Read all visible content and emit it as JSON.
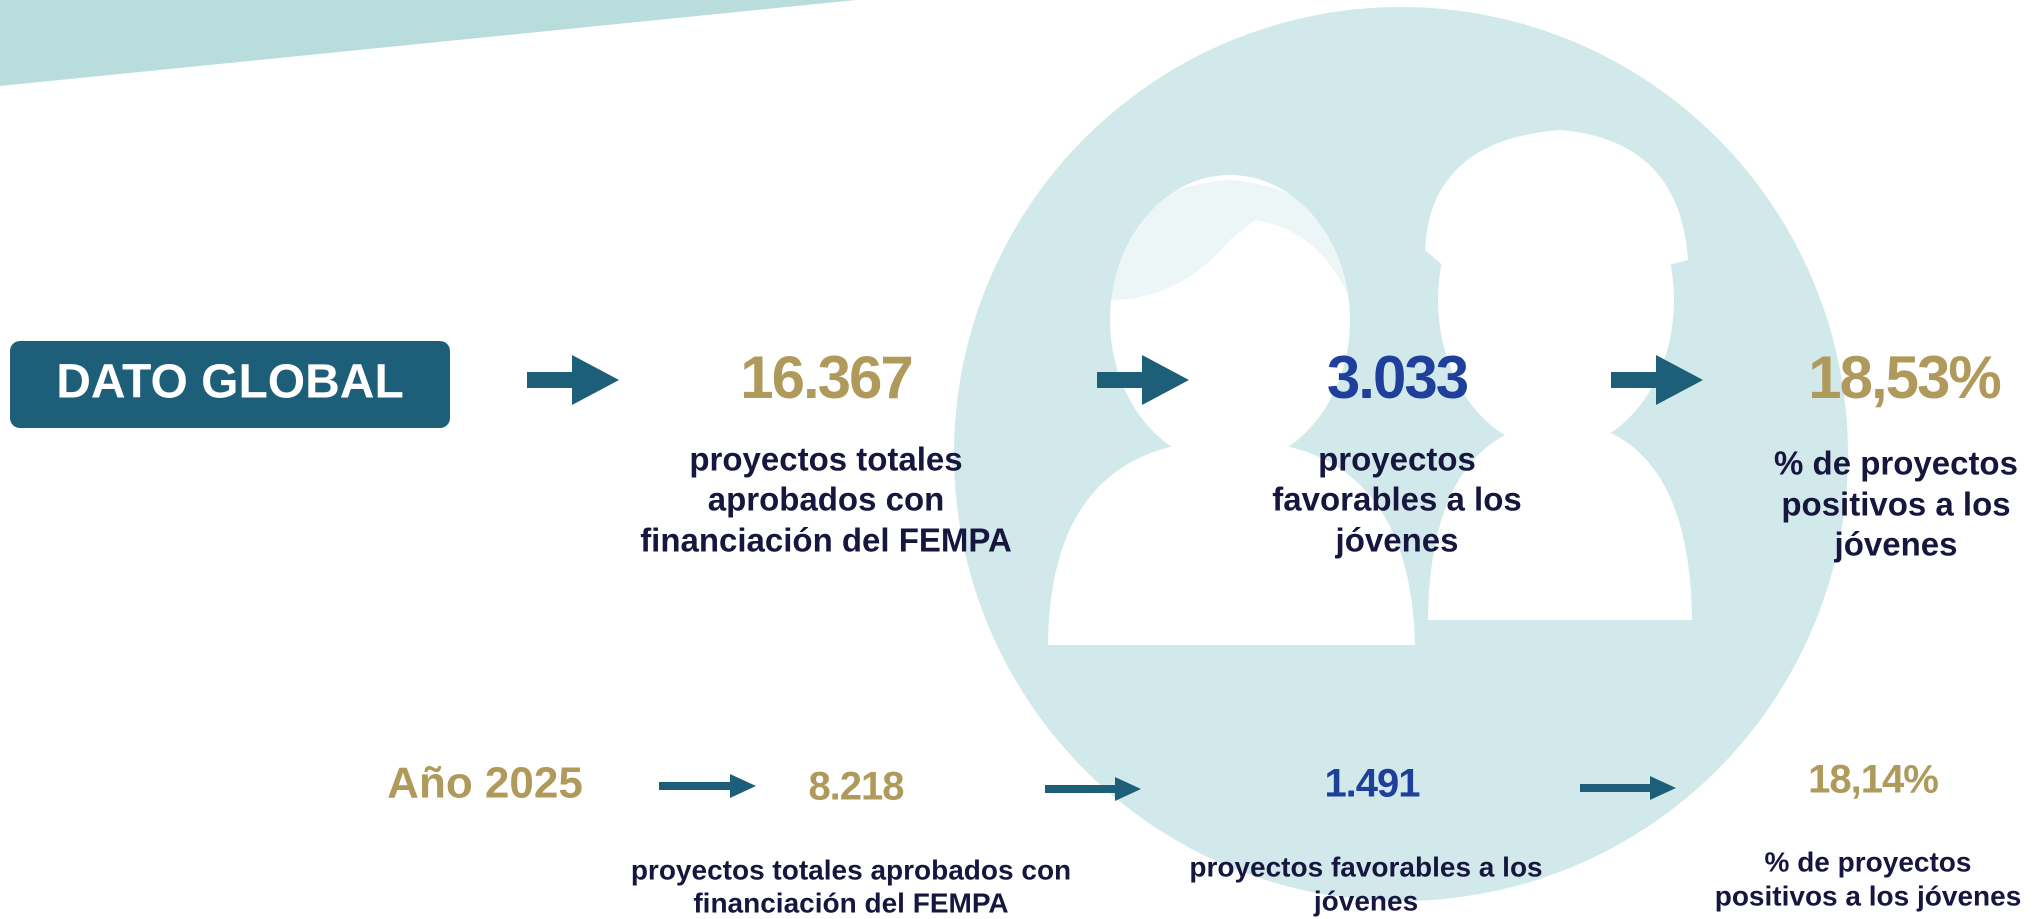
{
  "global": {
    "label": "DATO GLOBAL",
    "items": [
      {
        "value": "16.367",
        "description": [
          "proyectos totales",
          "aprobados con",
          "financiación del FEMPA"
        ]
      },
      {
        "value": "3.033",
        "description": [
          "proyectos",
          "favorables a los",
          "jóvenes"
        ]
      },
      {
        "value": "18,53%",
        "description": [
          "% de proyectos",
          "positivos a los",
          "jóvenes"
        ]
      }
    ]
  },
  "year": {
    "label": "Año 2025",
    "items": [
      {
        "value": "8.218",
        "description": [
          "proyectos totales aprobados con",
          "financiación del FEMPA"
        ]
      },
      {
        "value": "1.491",
        "description": [
          "proyectos favorables a los",
          "jóvenes"
        ]
      },
      {
        "value": "18,14%",
        "description": [
          "% de proyectos",
          "positivos a los jóvenes"
        ]
      }
    ]
  }
}
